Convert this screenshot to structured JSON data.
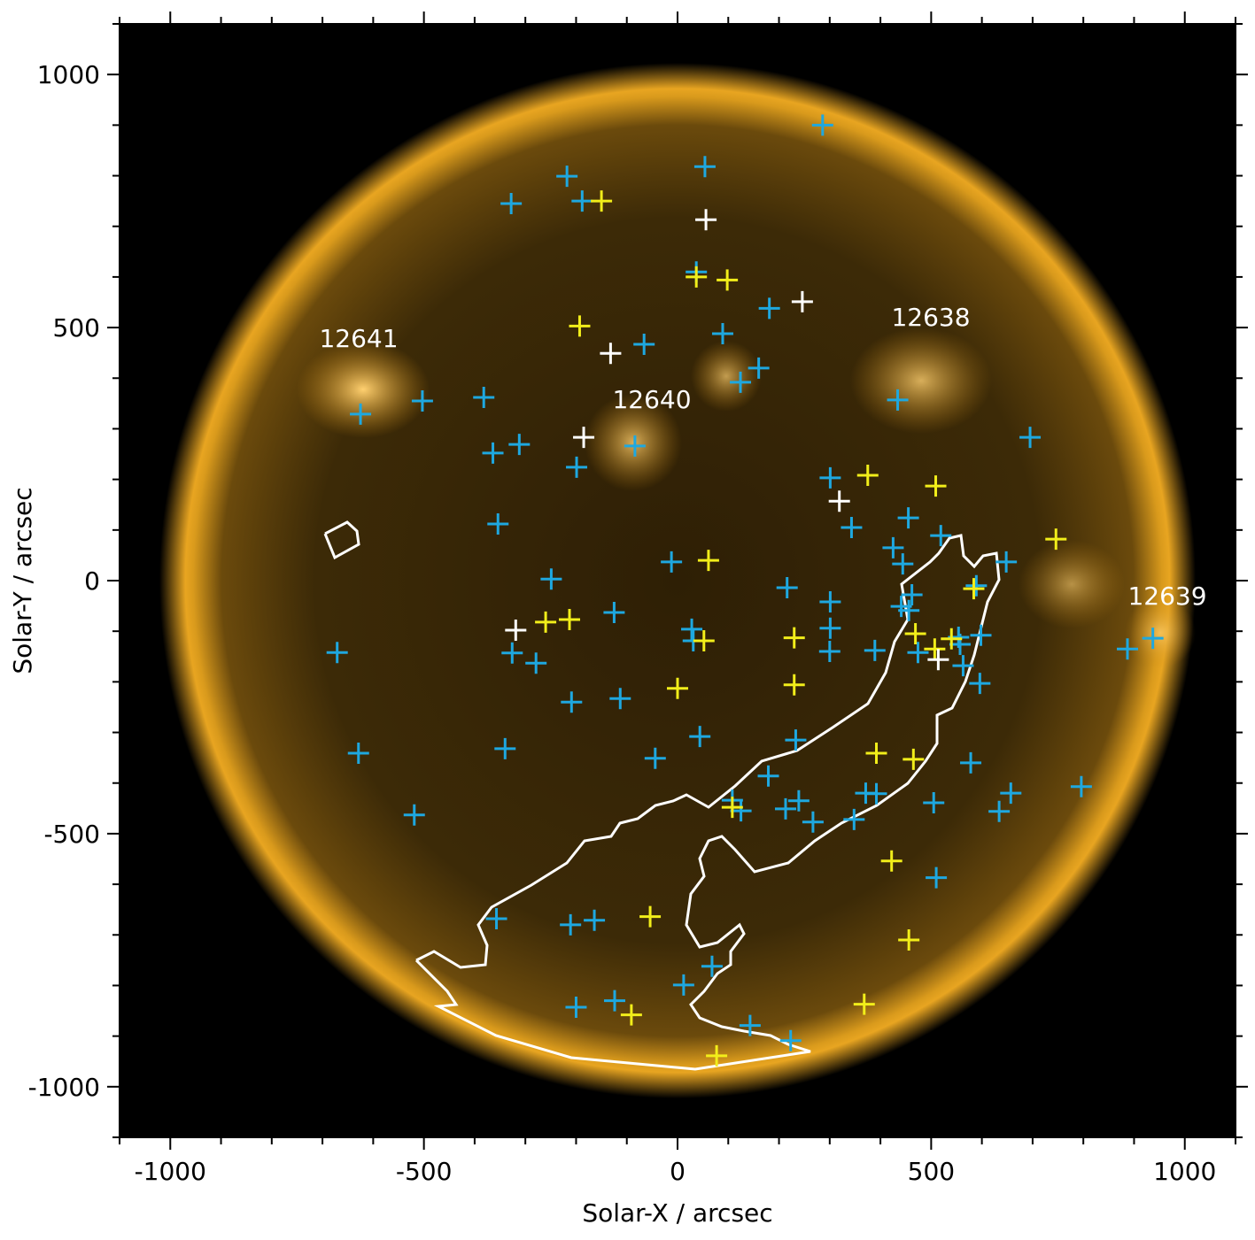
{
  "chart_data": {
    "type": "scatter",
    "xlabel": "Solar-X / arcsec",
    "ylabel": "Solar-Y / arcsec",
    "xlim": [
      -1100,
      1100
    ],
    "ylim": [
      -1100,
      1100
    ],
    "xticks": [
      -1000,
      -500,
      0,
      500,
      1000
    ],
    "yticks": [
      -1000,
      -500,
      0,
      500,
      1000
    ],
    "xticks_minor": [
      -1100,
      -900,
      -800,
      -700,
      -600,
      -400,
      -300,
      -200,
      -100,
      100,
      200,
      300,
      400,
      600,
      700,
      800,
      900,
      1100
    ],
    "yticks_minor": [
      -1100,
      -900,
      -800,
      -700,
      -600,
      -400,
      -300,
      -200,
      -100,
      100,
      200,
      300,
      400,
      600,
      700,
      800,
      900,
      1100
    ],
    "annotations": [
      "12641",
      "12640",
      "12638",
      "12639"
    ],
    "series": [
      {
        "color": "#1ea8e0",
        "x": [
          286,
          54,
          -218,
          -328,
          -188,
          37,
          181,
          89,
          -66,
          160,
          124,
          -382,
          -503,
          -625,
          434,
          -364,
          -312,
          -84,
          -199,
          695,
          301,
          343,
          455,
          425,
          519,
          648,
          -354,
          -12,
          -249,
          444,
          216,
          301,
          462,
          589,
          441,
          456,
          -125,
          -326,
          -279,
          28,
          31,
          301,
          300,
          389,
          474,
          554,
          557,
          598,
          563,
          596,
          -671,
          -209,
          -113,
          44,
          233,
          -340,
          -44,
          -629,
          578,
          179,
          108,
          125,
          239,
          213,
          267,
          348,
          371,
          392,
          505,
          657,
          634,
          796,
          -519,
          -357,
          -211,
          -164,
          510,
          68,
          12,
          -200,
          -124,
          143,
          223,
          887,
          937
        ],
        "y": [
          900,
          818,
          799,
          745,
          750,
          610,
          538,
          488,
          467,
          420,
          392,
          362,
          355,
          329,
          357,
          252,
          269,
          266,
          224,
          283,
          203,
          105,
          124,
          65,
          89,
          37,
          112,
          37,
          3,
          33,
          -14,
          -42,
          -28,
          -10,
          -51,
          -59,
          -63,
          -143,
          -163,
          -96,
          -119,
          -94,
          -140,
          -138,
          -142,
          -112,
          -126,
          -108,
          -168,
          -203,
          -142,
          -240,
          -233,
          -308,
          -315,
          -332,
          -351,
          -341,
          -360,
          -386,
          -434,
          -455,
          -435,
          -451,
          -477,
          -472,
          -420,
          -421,
          -439,
          -420,
          -456,
          -407,
          -463,
          -668,
          -680,
          -671,
          -587,
          -762,
          -799,
          -843,
          -830,
          -879,
          -909,
          -135,
          -114
        ]
      },
      {
        "color": "#f2ee1a",
        "x": [
          -150,
          37,
          98,
          -193,
          375,
          509,
          746,
          61,
          -260,
          -213,
          52,
          230,
          469,
          507,
          540,
          584,
          0,
          230,
          392,
          465,
          108,
          422,
          -54,
          456,
          368,
          -91,
          77
        ],
        "y": [
          750,
          600,
          594,
          503,
          208,
          187,
          82,
          40,
          -82,
          -77,
          -119,
          -113,
          -105,
          -135,
          -115,
          -16,
          -213,
          -206,
          -341,
          -353,
          -448,
          -554,
          -664,
          -710,
          -837,
          -858,
          -939
        ]
      },
      {
        "color": "#ffffff",
        "x": [
          56,
          246,
          -132,
          -185,
          319,
          -319,
          514
        ],
        "y": [
          713,
          551,
          449,
          283,
          157,
          -98,
          -156
        ]
      }
    ]
  }
}
